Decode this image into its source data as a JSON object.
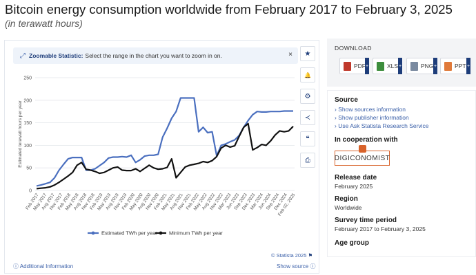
{
  "title": "Bitcoin energy consumption worldwide from February 2017 to February 3, 2025",
  "subtitle": "(in terawatt hours)",
  "zoom": {
    "label": "Zoomable Statistic:",
    "text": "Select the range in the chart you want to zoom in on.",
    "close": "×"
  },
  "tools": [
    "star-icon",
    "bell-icon",
    "gear-icon",
    "share-icon",
    "quote-icon",
    "print-icon"
  ],
  "tool_glyphs": [
    "★",
    "🔔",
    "⚙",
    "≺",
    "❝",
    "⎙"
  ],
  "credit": "© Statista 2025",
  "additional_info": "Additional Information",
  "show_source": "Show source",
  "download": {
    "title": "DOWNLOAD",
    "buttons": [
      {
        "label": "PDF",
        "color": "#c0392b"
      },
      {
        "label": "XLS",
        "color": "#3c8d3c"
      },
      {
        "label": "PNG",
        "color": "#7a8aa0"
      },
      {
        "label": "PPT",
        "color": "#e07a3a"
      }
    ]
  },
  "info": {
    "source_head": "Source",
    "source_links": [
      "Show sources information",
      "Show publisher information",
      "Use Ask Statista Research Service"
    ],
    "coop_head": "In cooperation with",
    "coop_logo": "DIGICONOMIST",
    "release_head": "Release date",
    "release_value": "February 2025",
    "region_head": "Region",
    "region_value": "Worldwide",
    "survey_head": "Survey time period",
    "survey_value": "February 2017 to February 3, 2025",
    "age_head": "Age group"
  },
  "chart_data": {
    "type": "line",
    "ylabel": "Estimated terawatt hours per year",
    "xlabel": "",
    "ylim": [
      0,
      250
    ],
    "yticks": [
      0,
      50,
      100,
      150,
      200,
      250
    ],
    "grid": true,
    "legend_position": "bottom",
    "x_tick_labels": [
      "Feb 2017",
      "May 2017",
      "Aug 2017",
      "Nov 2017",
      "Feb 2018",
      "May 2018",
      "Aug 2018",
      "Nov 2018",
      "Feb 2019",
      "May 2019",
      "Aug 2019",
      "Nov 2019",
      "Feb 2020",
      "May 2020",
      "Aug 2020",
      "Nov 2020",
      "Feb 2021",
      "May 2021",
      "Aug 2021",
      "Nov 2021",
      "Feb 2022",
      "May 2022",
      "Aug 2022",
      "Nov 2022",
      "Mar 2023",
      "Jun 2023",
      "Sep 2023",
      "Dec 2023",
      "Mar 2024",
      "Jun 2024",
      "Sep 2024",
      "Dec 2024",
      "Feb 02, 2025"
    ],
    "series": [
      {
        "name": "Estimated TWh per year",
        "color": "#4a6fbf",
        "values": [
          10,
          12,
          15,
          18,
          28,
          45,
          58,
          70,
          73,
          73,
          73,
          45,
          45,
          48,
          55,
          62,
          72,
          74,
          74,
          75,
          74,
          78,
          62,
          68,
          76,
          78,
          78,
          80,
          118,
          138,
          160,
          175,
          205,
          205,
          205,
          205,
          130,
          140,
          128,
          130,
          77,
          100,
          103,
          108,
          112,
          122,
          140,
          155,
          168,
          175,
          174,
          174,
          175,
          175,
          175,
          176,
          176,
          176
        ]
      },
      {
        "name": "Minimum TWh per year",
        "color": "#111111",
        "values": [
          4,
          5,
          6,
          8,
          12,
          18,
          25,
          32,
          40,
          56,
          62,
          47,
          45,
          42,
          38,
          40,
          45,
          50,
          52,
          45,
          44,
          44,
          48,
          42,
          49,
          56,
          50,
          47,
          48,
          51,
          70,
          28,
          40,
          52,
          56,
          58,
          60,
          64,
          62,
          66,
          75,
          94,
          100,
          96,
          99,
          120,
          140,
          148,
          90,
          95,
          102,
          100,
          110,
          123,
          132,
          130,
          132,
          142
        ]
      }
    ]
  }
}
